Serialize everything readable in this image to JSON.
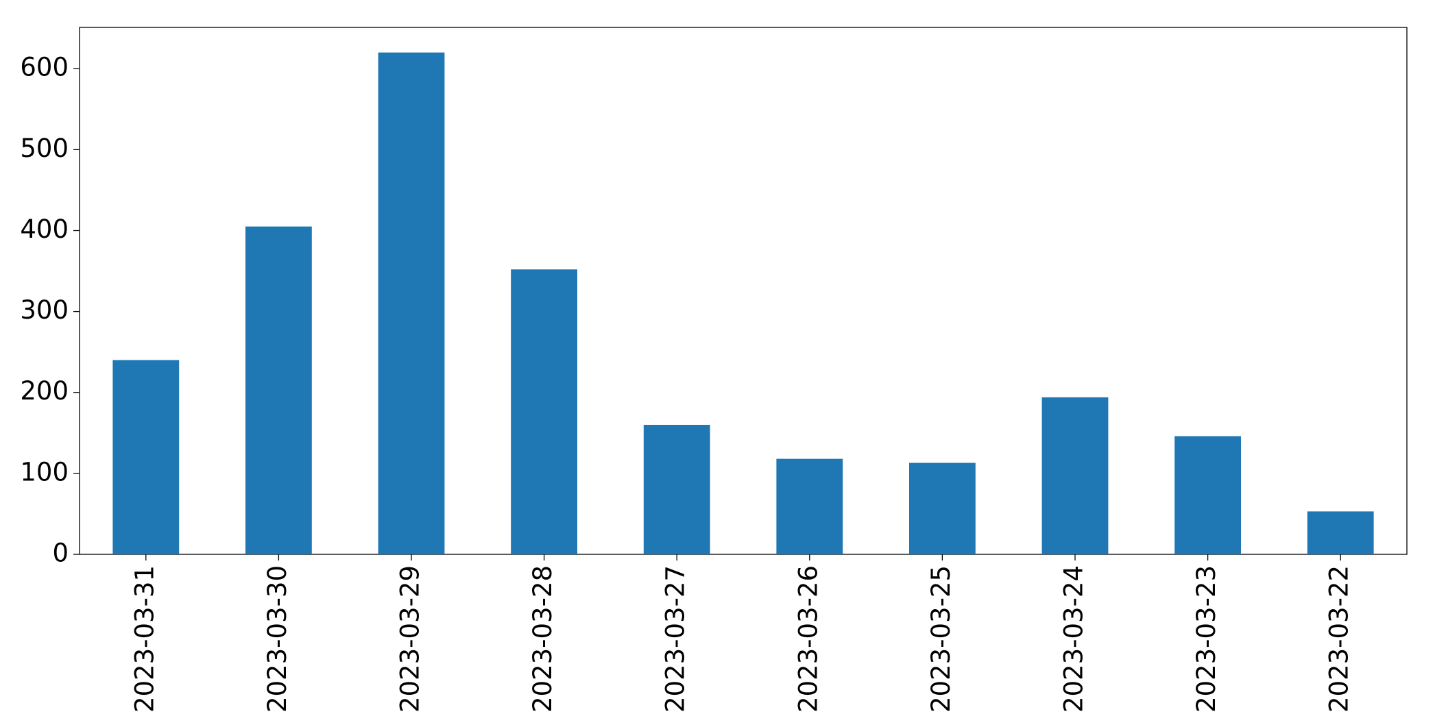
{
  "chart_data": {
    "type": "bar",
    "categories": [
      "2023-03-31",
      "2023-03-30",
      "2023-03-29",
      "2023-03-28",
      "2023-03-27",
      "2023-03-26",
      "2023-03-25",
      "2023-03-24",
      "2023-03-23",
      "2023-03-22"
    ],
    "values": [
      240,
      405,
      620,
      352,
      160,
      118,
      113,
      194,
      146,
      53
    ],
    "color": "#1f77b4",
    "ylim": [
      0,
      651
    ],
    "yticks": [
      0,
      100,
      200,
      300,
      400,
      500,
      600
    ],
    "grid": false
  }
}
